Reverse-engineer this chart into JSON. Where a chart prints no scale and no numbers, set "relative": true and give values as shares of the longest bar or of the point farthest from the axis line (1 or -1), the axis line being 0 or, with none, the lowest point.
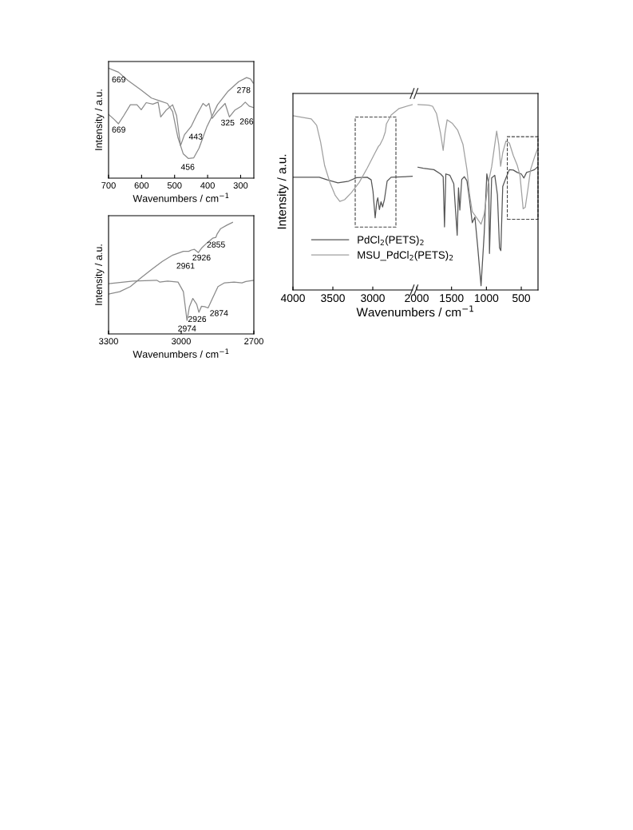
{
  "chart_data": [
    {
      "type": "line",
      "relative": true,
      "xlabel": "Wavenumbers / cm$^{−1}$",
      "ylabel": "Intensity / a.u.",
      "xlim": [
        700,
        260
      ],
      "xticks": [
        700,
        600,
        500,
        400,
        300
      ],
      "tick_labels": "x",
      "grid": false,
      "legend": false,
      "series": [
        {
          "color": "#8a8a8a",
          "x": [
            700,
            670,
            642,
            602,
            570,
            546,
            522,
            506,
            490,
            474,
            458,
            442,
            426,
            402,
            370,
            338,
            306,
            282,
            270,
            262
          ],
          "values": [
            1.0,
            0.963,
            0.889,
            0.802,
            0.728,
            0.704,
            0.679,
            0.605,
            0.37,
            0.222,
            0.178,
            0.185,
            0.272,
            0.469,
            0.667,
            0.79,
            0.877,
            0.914,
            0.901,
            0.864
          ]
        },
        {
          "color": "#8a8a8a",
          "x": [
            700,
            682,
            670,
            654,
            634,
            614,
            601,
            586,
            566,
            550,
            542,
            526,
            506,
            494,
            482,
            470,
            450,
            434,
            414,
            404,
            396,
            386,
            370,
            347,
            334,
            318,
            298,
            286,
            274,
            262
          ],
          "values": [
            0.58,
            0.531,
            0.494,
            0.568,
            0.667,
            0.667,
            0.622,
            0.686,
            0.672,
            0.691,
            0.556,
            0.617,
            0.667,
            0.568,
            0.296,
            0.395,
            0.469,
            0.568,
            0.679,
            0.654,
            0.679,
            0.543,
            0.605,
            0.679,
            0.556,
            0.617,
            0.654,
            0.691,
            0.654,
            0.642
          ]
        }
      ],
      "annotations": [
        "669",
        "669",
        "456",
        "443",
        "325",
        "278",
        "266"
      ]
    },
    {
      "type": "line",
      "relative": true,
      "xlabel": "Wavenumbers / cm$^{−1}$",
      "ylabel": "Intensity / a.u.",
      "xlim": [
        3300,
        2700
      ],
      "xticks": [
        3300,
        3000,
        2700
      ],
      "tick_labels": "x",
      "grid": false,
      "legend": false,
      "series": [
        {
          "color": "#8a8a8a",
          "x": [
            3300,
            3254,
            3210,
            3166,
            3122,
            3078,
            3035,
            2991,
            2969,
            2958,
            2945,
            2929,
            2914,
            2892,
            2870,
            2857,
            2852,
            2837,
            2810,
            2788
          ],
          "values": [
            0.357,
            0.379,
            0.424,
            0.503,
            0.578,
            0.65,
            0.707,
            0.74,
            0.74,
            0.752,
            0.758,
            0.729,
            0.774,
            0.819,
            0.858,
            0.865,
            0.894,
            0.944,
            0.977,
            1.0
          ]
        },
        {
          "color": "#8a8a8a",
          "x": [
            3300,
            3199,
            3101,
            3089,
            3056,
            3013,
            2991,
            2976,
            2966,
            2952,
            2936,
            2927,
            2916,
            2903,
            2889,
            2870,
            2848,
            2821,
            2782,
            2749,
            2733,
            2700
          ],
          "values": [
            0.451,
            0.474,
            0.481,
            0.465,
            0.474,
            0.465,
            0.379,
            0.12,
            0.244,
            0.318,
            0.266,
            0.194,
            0.248,
            0.244,
            0.233,
            0.323,
            0.424,
            0.458,
            0.465,
            0.458,
            0.47,
            0.481
          ]
        }
      ],
      "annotations": [
        "2855",
        "2926",
        "2961",
        "2926",
        "2974",
        "2874"
      ]
    },
    {
      "type": "line",
      "relative": true,
      "ylabel": "Intensity / a.u.",
      "xlim": [
        4000,
        2500
      ],
      "xticks": [
        4000,
        3500,
        3000
      ],
      "tick_labels": "x",
      "grid": false,
      "legend": "bottom",
      "series": [
        {
          "name": "PdCl$_{2}$(PETS)$_{2}$",
          "color": "#555555",
          "x": [
            4000,
            3670,
            3570,
            3437,
            3303,
            3203,
            3070,
            3020,
            2997,
            2970,
            2950,
            2937,
            2917,
            2897,
            2877,
            2853,
            2820,
            2770,
            2503
          ],
          "values": [
            0.608,
            0.608,
            0.594,
            0.578,
            0.587,
            0.606,
            0.608,
            0.594,
            0.531,
            0.389,
            0.476,
            0.497,
            0.434,
            0.476,
            0.448,
            0.49,
            0.587,
            0.608,
            0.613
          ]
        },
        {
          "name": "MSU_PdCl$_{2}$(PETS)$_{2}$",
          "color": "#a0a0a0",
          "x": [
            4000,
            3770,
            3703,
            3653,
            3603,
            3537,
            3470,
            3413,
            3353,
            3270,
            3170,
            3070,
            2970,
            2927,
            2910,
            2870,
            2843,
            2830,
            2770,
            2670,
            2503
          ],
          "values": [
            0.94,
            0.923,
            0.888,
            0.797,
            0.671,
            0.58,
            0.51,
            0.478,
            0.487,
            0.524,
            0.58,
            0.657,
            0.741,
            0.776,
            0.783,
            0.818,
            0.853,
            0.895,
            0.944,
            0.979,
            1.0
          ]
        }
      ]
    },
    {
      "type": "line",
      "relative": true,
      "xlabel": "Wavenumbers / cm$^{−1}$",
      "xlim": [
        2000,
        260
      ],
      "xticks": [
        2000,
        1500,
        1000,
        500
      ],
      "tick_labels": "x",
      "grid": false,
      "legend": false,
      "series": [
        {
          "color": "#555555",
          "x": [
            1981,
            1905,
            1753,
            1658,
            1620,
            1601,
            1582,
            1525,
            1468,
            1419,
            1400,
            1381,
            1354,
            1317,
            1279,
            1241,
            1203,
            1165,
            1127,
            1077,
            1032,
            994,
            967,
            956,
            925,
            880,
            842,
            812,
            793,
            766,
            720,
            671,
            614,
            557,
            500,
            462,
            424,
            367,
            310,
            265
          ],
          "values": [
            0.662,
            0.657,
            0.649,
            0.626,
            0.611,
            0.34,
            0.626,
            0.619,
            0.573,
            0.295,
            0.551,
            0.431,
            0.596,
            0.611,
            0.589,
            0.484,
            0.363,
            0.393,
            0.242,
            0.023,
            0.302,
            0.626,
            0.573,
            0.197,
            0.604,
            0.619,
            0.514,
            0.227,
            0.212,
            0.558,
            0.604,
            0.649,
            0.647,
            0.634,
            0.626,
            0.604,
            0.634,
            0.641,
            0.649,
            0.664
          ]
        },
        {
          "color": "#a0a0a0",
          "x": [
            1981,
            1829,
            1772,
            1715,
            1658,
            1620,
            1594,
            1563,
            1487,
            1411,
            1336,
            1279,
            1241,
            1203,
            1146,
            1077,
            1032,
            975,
            925,
            880,
            853,
            823,
            796,
            766,
            720,
            671,
            614,
            557,
            519,
            473,
            443,
            405,
            367,
            310,
            265
          ],
          "values": [
            1.0,
            0.997,
            0.991,
            0.951,
            0.846,
            0.753,
            0.846,
            0.918,
            0.898,
            0.861,
            0.785,
            0.649,
            0.514,
            0.423,
            0.393,
            0.355,
            0.408,
            0.573,
            0.664,
            0.785,
            0.857,
            0.785,
            0.667,
            0.74,
            0.803,
            0.793,
            0.725,
            0.672,
            0.619,
            0.438,
            0.446,
            0.543,
            0.649,
            0.717,
            0.762
          ]
        }
      ]
    }
  ]
}
